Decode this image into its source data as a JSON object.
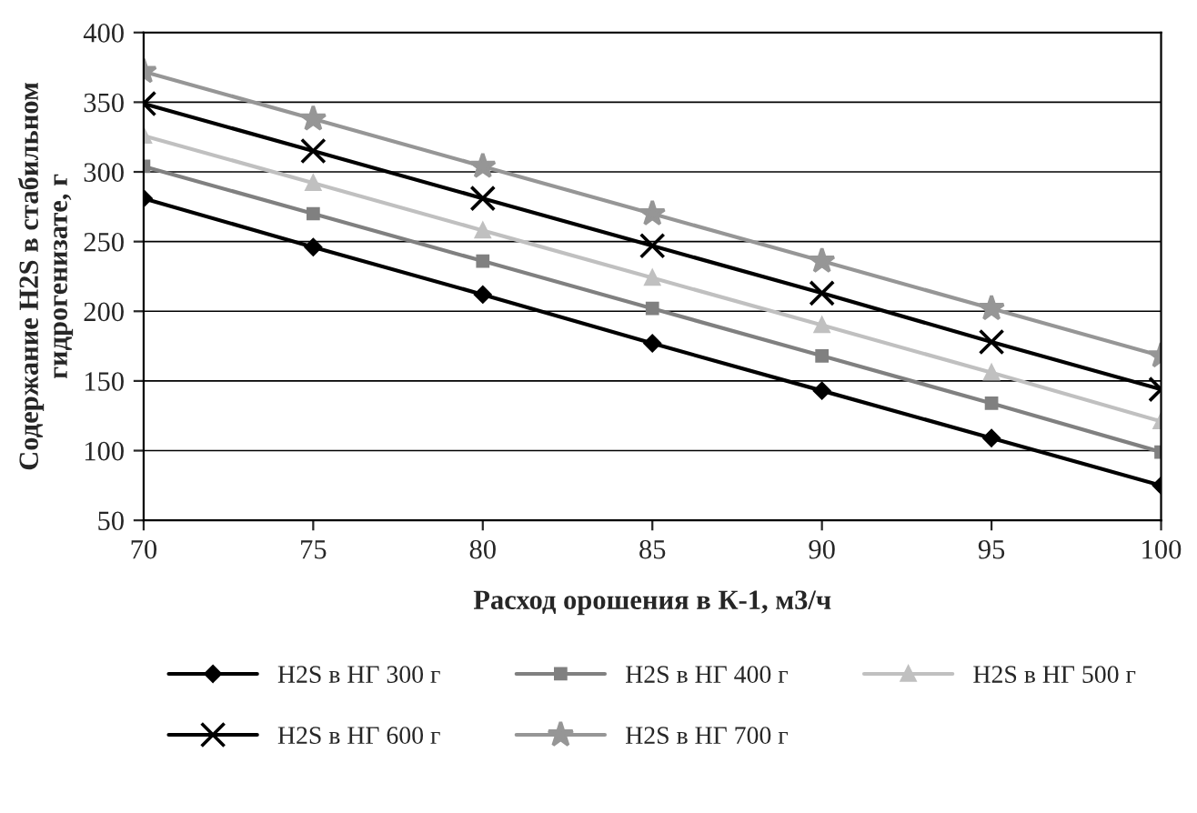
{
  "chart_data": {
    "type": "line",
    "xlabel": "Расход орошения в К-1, м3/ч",
    "ylabel": "Содержание H2S в стабильном\nгидрогенизате, г",
    "x": [
      70,
      75,
      80,
      85,
      90,
      95,
      100
    ],
    "series": [
      {
        "name": "H2S в НГ 300 г",
        "color": "#000000",
        "marker": "diamond",
        "values": [
          281,
          246,
          212,
          177,
          143,
          109,
          75
        ]
      },
      {
        "name": "H2S в НГ 400 г",
        "color": "#808080",
        "marker": "square",
        "values": [
          304,
          270,
          236,
          202,
          168,
          134,
          99
        ]
      },
      {
        "name": "H2S в НГ 500 г",
        "color": "#c0c0c0",
        "marker": "triangle",
        "values": [
          326,
          292,
          258,
          224,
          190,
          156,
          121
        ]
      },
      {
        "name": "H2S в НГ 600 г",
        "color": "#000000",
        "marker": "cross",
        "values": [
          349,
          315,
          281,
          247,
          213,
          178,
          144
        ]
      },
      {
        "name": "H2S в НГ 700 г",
        "color": "#969696",
        "marker": "star",
        "values": [
          372,
          338,
          304,
          270,
          236,
          202,
          168
        ]
      }
    ],
    "xlim": [
      70,
      100
    ],
    "xticks": [
      70,
      75,
      80,
      85,
      90,
      95,
      100
    ],
    "ylim": [
      50,
      400
    ],
    "yticks": [
      50,
      100,
      150,
      200,
      250,
      300,
      350,
      400
    ],
    "grid": "y",
    "legend": "bottom",
    "line_style": "solid"
  }
}
